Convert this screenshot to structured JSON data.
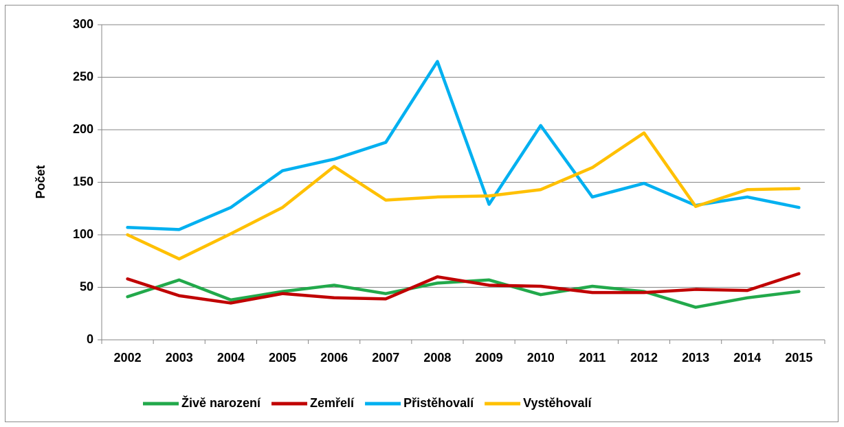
{
  "chart_data": {
    "type": "line",
    "y_label": "Počet",
    "categories": [
      "2002",
      "2003",
      "2004",
      "2005",
      "2006",
      "2007",
      "2008",
      "2009",
      "2010",
      "2011",
      "2012",
      "2013",
      "2014",
      "2015"
    ],
    "series": [
      {
        "name": "Živě narození",
        "color": "#22a94b",
        "values": [
          41,
          57,
          38,
          46,
          52,
          44,
          54,
          57,
          43,
          51,
          46,
          31,
          40,
          46
        ]
      },
      {
        "name": "Zemřelí",
        "color": "#c00000",
        "values": [
          58,
          42,
          35,
          44,
          40,
          39,
          60,
          52,
          51,
          45,
          45,
          48,
          47,
          63
        ]
      },
      {
        "name": "Přistěhovalí",
        "color": "#00b0f0",
        "values": [
          107,
          105,
          126,
          161,
          172,
          188,
          265,
          129,
          204,
          136,
          149,
          128,
          136,
          126
        ]
      },
      {
        "name": "Vystěhovalí",
        "color": "#ffc000",
        "values": [
          100,
          77,
          101,
          126,
          165,
          133,
          136,
          137,
          143,
          164,
          197,
          127,
          143,
          144
        ]
      }
    ],
    "ylim": [
      0,
      300
    ],
    "yticks": [
      0,
      50,
      100,
      150,
      200,
      250,
      300
    ],
    "grid": true,
    "legend": "bottom"
  }
}
